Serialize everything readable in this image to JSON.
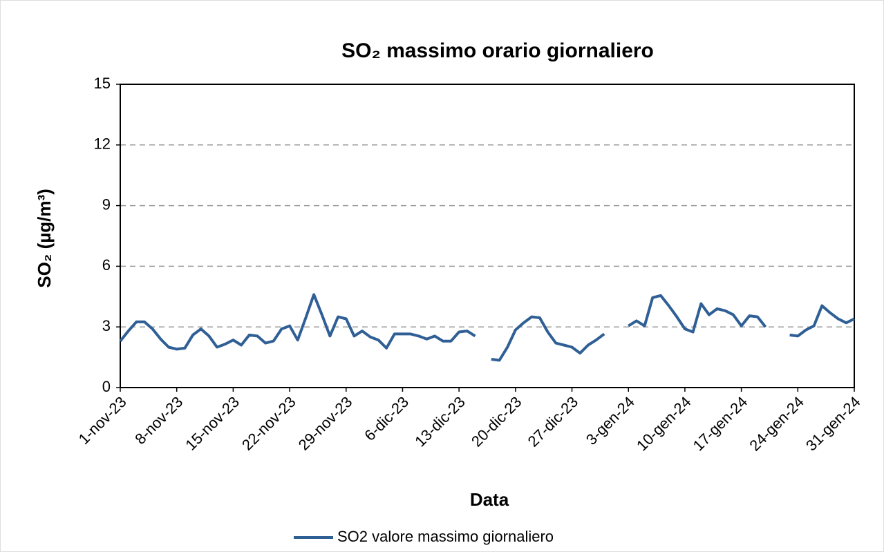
{
  "chart_data": {
    "type": "line",
    "title": "SO₂ massimo orario giornaliero",
    "x_label": "Data",
    "y_label": "SO₂ (µg/m³)",
    "categories": [
      "1-nov-23",
      null,
      null,
      null,
      null,
      null,
      null,
      "8-nov-23",
      null,
      null,
      null,
      null,
      null,
      null,
      "15-nov-23",
      null,
      null,
      null,
      null,
      null,
      null,
      "22-nov-23",
      null,
      null,
      null,
      null,
      null,
      null,
      "29-nov-23",
      null,
      null,
      null,
      null,
      null,
      null,
      "6-dic-23",
      null,
      null,
      null,
      null,
      null,
      null,
      "13-dic-23",
      null,
      null,
      null,
      null,
      null,
      null,
      "20-dic-23",
      null,
      null,
      null,
      null,
      null,
      null,
      "27-dic-23",
      null,
      null,
      null,
      null,
      null,
      null,
      "3-gen-24",
      null,
      null,
      null,
      null,
      null,
      null,
      "10-gen-24",
      null,
      null,
      null,
      null,
      null,
      null,
      "17-gen-24",
      null,
      null,
      null,
      null,
      null,
      null,
      "24-gen-24",
      null,
      null,
      null,
      null,
      null,
      null,
      "31-gen-24"
    ],
    "series": [
      {
        "name": "SO2 valore massimo giornaliero",
        "color": "#2f5f95",
        "values": [
          2.3,
          2.8,
          3.25,
          3.25,
          2.9,
          2.4,
          2.0,
          1.9,
          1.95,
          2.6,
          2.9,
          2.55,
          2.0,
          2.15,
          2.35,
          2.1,
          2.6,
          2.55,
          2.2,
          2.3,
          2.9,
          3.05,
          2.35,
          3.45,
          4.6,
          3.6,
          2.55,
          3.5,
          3.4,
          2.55,
          2.8,
          2.5,
          2.35,
          1.95,
          2.65,
          2.65,
          2.65,
          2.55,
          2.4,
          2.55,
          2.3,
          2.3,
          2.75,
          2.8,
          2.55,
          null,
          1.4,
          1.35,
          2.0,
          2.85,
          3.2,
          3.5,
          3.45,
          2.75,
          2.2,
          2.1,
          2.0,
          1.7,
          2.1,
          2.35,
          2.65,
          null,
          null,
          3.05,
          3.3,
          3.05,
          4.45,
          4.55,
          4.05,
          3.5,
          2.9,
          2.75,
          4.15,
          3.6,
          3.9,
          3.8,
          3.6,
          3.05,
          3.55,
          3.5,
          3.0,
          null,
          null,
          2.6,
          2.55,
          2.85,
          3.05,
          4.05,
          3.7,
          3.4,
          3.2,
          3.4
        ]
      }
    ],
    "ylim": [
      0,
      15
    ],
    "yticks": [
      0,
      3,
      6,
      9,
      12,
      15
    ],
    "grid": true
  }
}
